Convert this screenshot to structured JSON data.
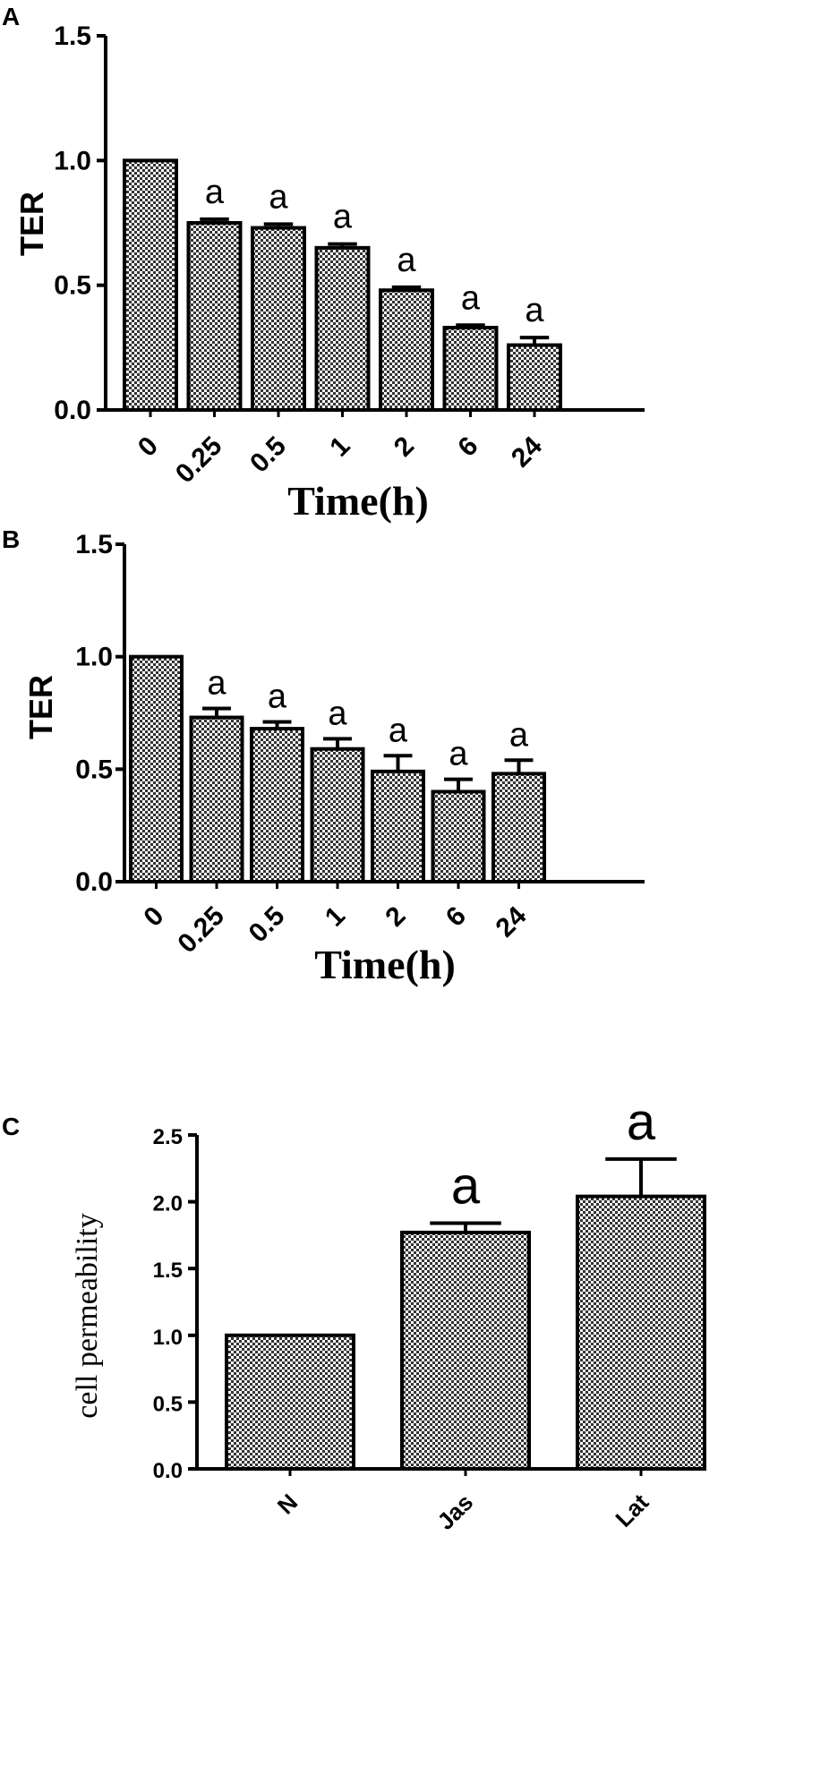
{
  "chart_data": [
    {
      "panel": "A",
      "type": "bar",
      "categories": [
        "0",
        "0.25",
        "0.5",
        "1",
        "2",
        "6",
        "24"
      ],
      "values": [
        1.0,
        0.75,
        0.73,
        0.65,
        0.48,
        0.33,
        0.26
      ],
      "errors": [
        0.0,
        0.015,
        0.015,
        0.015,
        0.012,
        0.01,
        0.03
      ],
      "annotations": [
        "",
        "a",
        "a",
        "a",
        "a",
        "a",
        "a"
      ],
      "yticks": [
        "0.0",
        "0.5",
        "1.0",
        "1.5"
      ],
      "ylim": [
        0,
        1.5
      ],
      "ylabel": "TER",
      "xlabel": "Time(h)"
    },
    {
      "panel": "B",
      "type": "bar",
      "categories": [
        "0",
        "0.25",
        "0.5",
        "1",
        "2",
        "6",
        "24"
      ],
      "values": [
        1.0,
        0.73,
        0.68,
        0.59,
        0.49,
        0.4,
        0.48
      ],
      "errors": [
        0.0,
        0.04,
        0.03,
        0.045,
        0.07,
        0.055,
        0.06
      ],
      "annotations": [
        "",
        "a",
        "a",
        "a",
        "a",
        "a",
        "a"
      ],
      "yticks": [
        "0.0",
        "0.5",
        "1.0",
        "1.5"
      ],
      "ylim": [
        0,
        1.5
      ],
      "ylabel": "TER",
      "xlabel": "Time(h)"
    },
    {
      "panel": "C",
      "type": "bar",
      "categories": [
        "N",
        "Jas",
        "Lat"
      ],
      "values": [
        1.0,
        1.77,
        2.04
      ],
      "errors": [
        0.0,
        0.07,
        0.28
      ],
      "annotations": [
        "",
        "a",
        "a"
      ],
      "yticks": [
        "0.0",
        "0.5",
        "1.0",
        "1.5",
        "2.0",
        "2.5"
      ],
      "ylim": [
        0,
        2.5
      ],
      "ylabel": "cell permeability",
      "xlabel": ""
    }
  ]
}
